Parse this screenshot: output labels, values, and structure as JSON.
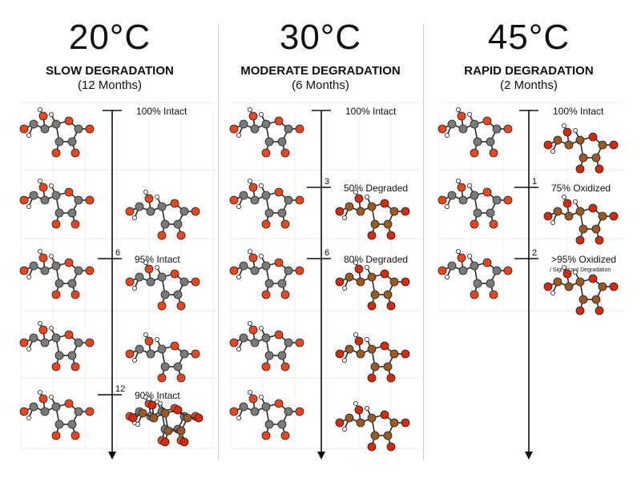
{
  "panels": [
    {
      "temperature": "20°C",
      "rate": "SLOW DEGRADATION",
      "duration": "(12 Months)",
      "top_label": "100% Intact",
      "markers": [
        {
          "tick": "6",
          "label": "95% Intact",
          "sublabel": ""
        },
        {
          "tick": "12",
          "label": "90% Intact",
          "sublabel": ""
        }
      ]
    },
    {
      "temperature": "30°C",
      "rate": "MODERATE DEGRADATION",
      "duration": "(6 Months)",
      "top_label": "100% Intact",
      "markers": [
        {
          "tick": "3",
          "label": "50% Degraded",
          "sublabel": ""
        },
        {
          "tick": "6",
          "label": "80% Degraded",
          "sublabel": ""
        }
      ]
    },
    {
      "temperature": "45°C",
      "rate": "RAPID DEGRADATION",
      "duration": "(2 Months)",
      "top_label": "100% Intact",
      "markers": [
        {
          "tick": "1",
          "label": "75% Oxidized",
          "sublabel": ""
        },
        {
          "tick": "2",
          "label": ">95% Oxidized",
          "sublabel": "/ Significant Degradation"
        }
      ]
    }
  ],
  "colors": {
    "carbon": "#7a7a7a",
    "oxygen": "#e8461f",
    "hydrogen": "#ffffff",
    "oxidized_carbon": "#9a5a22",
    "oxidized_oxygen": "#d42a10",
    "axis": "#111111",
    "grid": "#e9e9e9",
    "divider": "#cfcfcf"
  },
  "molecule_icon": "ascorbic-acid-ball-and-stick"
}
